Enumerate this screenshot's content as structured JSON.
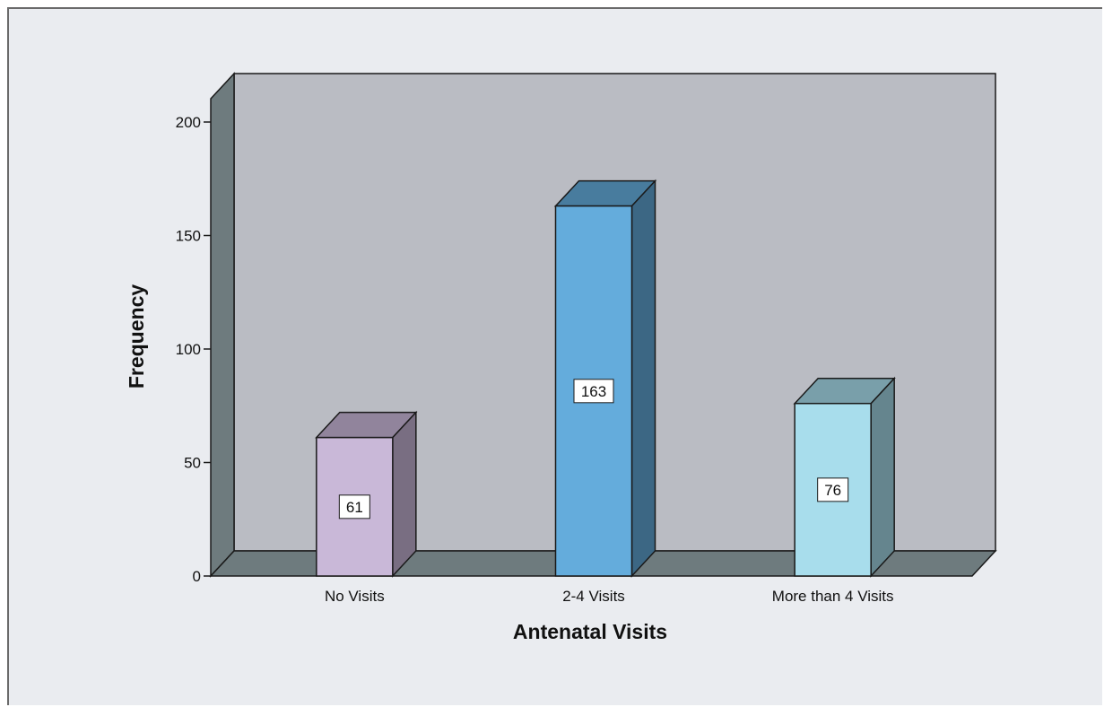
{
  "chart_data": {
    "type": "bar",
    "style": "3d",
    "title": "",
    "xlabel": "Antenatal Visits",
    "ylabel": "Frequency",
    "ylim": [
      0,
      200
    ],
    "yticks": [
      0,
      50,
      100,
      150,
      200
    ],
    "ytick_labels": [
      "0",
      "50",
      "100",
      "150",
      "200"
    ],
    "categories": [
      "No Visits",
      "2-4 Visits",
      "More than 4 Visits"
    ],
    "values": [
      61,
      163,
      76
    ],
    "data_labels": [
      "61",
      "163",
      "76"
    ],
    "colors": [
      "#c9b8d8",
      "#64acdc",
      "#a8ddec"
    ],
    "grid": false,
    "legend": "none"
  }
}
